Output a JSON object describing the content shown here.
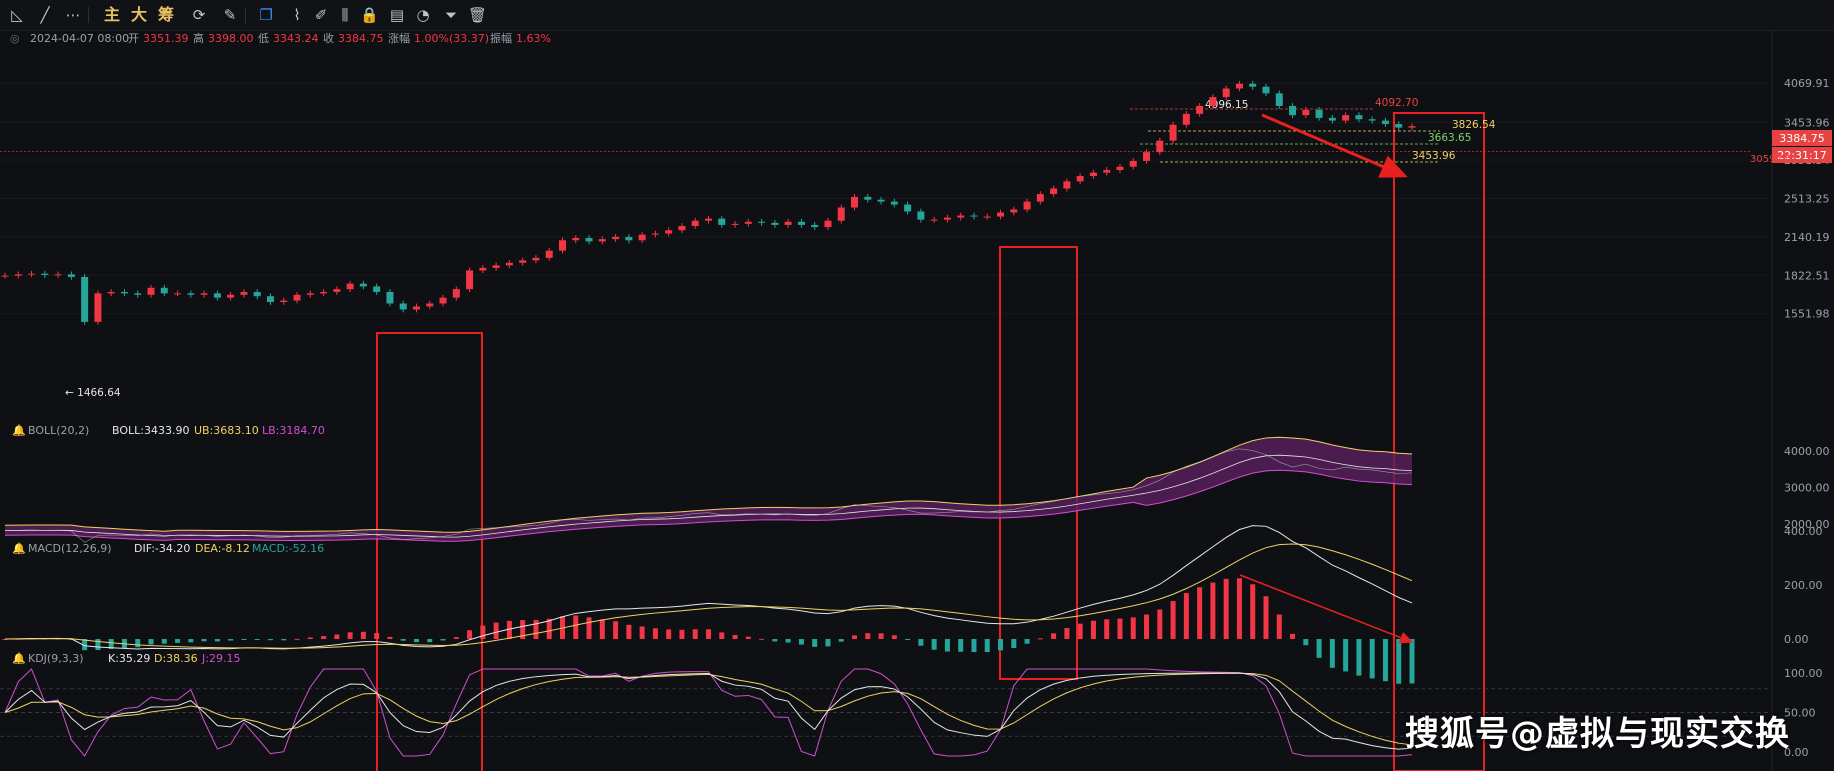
{
  "toolbar": {
    "tools": [
      {
        "icon": "trend-angle-icon",
        "glyph": "◺"
      },
      {
        "icon": "line-tool-icon",
        "glyph": "╱"
      },
      {
        "icon": "more-icon",
        "glyph": "⋯"
      },
      {
        "label": "主"
      },
      {
        "label": "大"
      },
      {
        "label": "筹"
      },
      {
        "icon": "refresh-icon",
        "glyph": "⟳"
      },
      {
        "icon": "brush-icon",
        "glyph": "✎"
      },
      {
        "icon": "copy-icon",
        "glyph": "❐"
      },
      {
        "icon": "ruler-icon",
        "glyph": "⌇"
      },
      {
        "icon": "pen-icon",
        "glyph": "✐"
      },
      {
        "icon": "candles-icon",
        "glyph": "⫼"
      },
      {
        "icon": "lock-icon",
        "glyph": "🔒"
      },
      {
        "icon": "note-icon",
        "glyph": "▤"
      },
      {
        "icon": "magnet-icon",
        "glyph": "◔"
      },
      {
        "icon": "filter-icon",
        "glyph": "⏷"
      },
      {
        "icon": "trash-icon",
        "glyph": "🗑"
      }
    ]
  },
  "ohlc": {
    "date": "2024-04-07 08:00",
    "open_label": "开",
    "open": "3351.39",
    "high_label": "高",
    "high": "3398.00",
    "low_label": "低",
    "low": "3343.24",
    "close_label": "收",
    "close": "3384.75",
    "chg_label": "涨幅",
    "chg": "1.00%(33.37)",
    "amp_label": "振幅",
    "amp": "1.63%"
  },
  "boll": {
    "name": "BOLL(20,2)",
    "mid": "BOLL:3433.90",
    "ub": "UB:3683.10",
    "lb": "LB:3184.70"
  },
  "macd": {
    "name": "MACD(12,26,9)",
    "dif": "DIF:-34.20",
    "dea": "DEA:-8.12",
    "macd": "MACD:-52.16"
  },
  "kdj": {
    "name": "KDJ(9,3,3)",
    "k": "K:35.29",
    "d": "D:38.36",
    "j": "J:29.15"
  },
  "price_badges": {
    "last": "3384.75",
    "timer": "22:31:17",
    "ref_line": "3059.00"
  },
  "watermark": "搜狐号@虚拟与现实交换",
  "colors": {
    "up": "#f23645",
    "down": "#26a69a",
    "accent": "#e84343",
    "yellow": "#f0d264",
    "purple": "#d050d0",
    "green_label": "#7fd36b"
  },
  "chart_data": [
    {
      "type": "candlestick",
      "title": "",
      "y_axis_ticks": [
        4069.91,
        3453.96,
        2951.34,
        2513.25,
        2140.19,
        1822.51,
        1551.98
      ],
      "key_levels": [
        {
          "value": 4096.15,
          "label": "4096.15"
        },
        {
          "value": 4092.7,
          "label": "4092.70"
        },
        {
          "value": 3826.54,
          "label": "3826.54"
        },
        {
          "value": 3663.65,
          "label": "3663.65"
        },
        {
          "value": 3453.96,
          "label": "3453.96"
        },
        {
          "value": 1466.64,
          "label": "1466.64"
        }
      ],
      "close_series": [
        1820,
        1830,
        1835,
        1825,
        1830,
        1810,
        1500,
        1690,
        1700,
        1690,
        1680,
        1730,
        1690,
        1690,
        1680,
        1690,
        1660,
        1680,
        1700,
        1670,
        1630,
        1640,
        1680,
        1690,
        1700,
        1720,
        1760,
        1740,
        1700,
        1620,
        1580,
        1600,
        1620,
        1660,
        1720,
        1860,
        1880,
        1900,
        1920,
        1940,
        1960,
        2020,
        2110,
        2130,
        2100,
        2120,
        2140,
        2110,
        2160,
        2170,
        2200,
        2240,
        2290,
        2310,
        2250,
        2260,
        2280,
        2270,
        2250,
        2280,
        2250,
        2230,
        2290,
        2420,
        2530,
        2500,
        2480,
        2450,
        2380,
        2300,
        2300,
        2320,
        2340,
        2330,
        2330,
        2370,
        2400,
        2480,
        2560,
        2620,
        2700,
        2760,
        2800,
        2830,
        2870,
        2940,
        3050,
        3200,
        3420,
        3580,
        3700,
        3840,
        3980,
        4060,
        4010,
        3900,
        3700,
        3560,
        3640,
        3520,
        3480,
        3560,
        3500,
        3480,
        3430,
        3380,
        3400
      ],
      "annotations": [
        {
          "type": "arrow",
          "from_index": 86,
          "to_index": 105,
          "text": ""
        },
        {
          "type": "box",
          "from_index": 36,
          "to_index": 46
        },
        {
          "type": "box",
          "from_index": 96,
          "to_index": 104
        },
        {
          "type": "box",
          "from_index": 136,
          "to_index": 144
        }
      ]
    },
    {
      "type": "line",
      "title": "BOLL(20,2)",
      "y_axis_ticks": [
        4000,
        3000,
        2000
      ],
      "series": [
        {
          "name": "BOLL",
          "last": 3433.9
        },
        {
          "name": "UB",
          "last": 3683.1
        },
        {
          "name": "LB",
          "last": 3184.7
        }
      ]
    },
    {
      "type": "bar",
      "title": "MACD(12,26,9)",
      "y_axis_ticks": [
        400,
        200,
        0
      ],
      "series": [
        {
          "name": "DIF",
          "last": -34.2
        },
        {
          "name": "DEA",
          "last": -8.12
        },
        {
          "name": "MACD",
          "last": -52.16
        }
      ]
    },
    {
      "type": "line",
      "title": "KDJ(9,3,3)",
      "y_axis_ticks": [
        100,
        50,
        0
      ],
      "series": [
        {
          "name": "K",
          "last": 35.29
        },
        {
          "name": "D",
          "last": 38.36
        },
        {
          "name": "J",
          "last": 29.15
        }
      ]
    }
  ]
}
